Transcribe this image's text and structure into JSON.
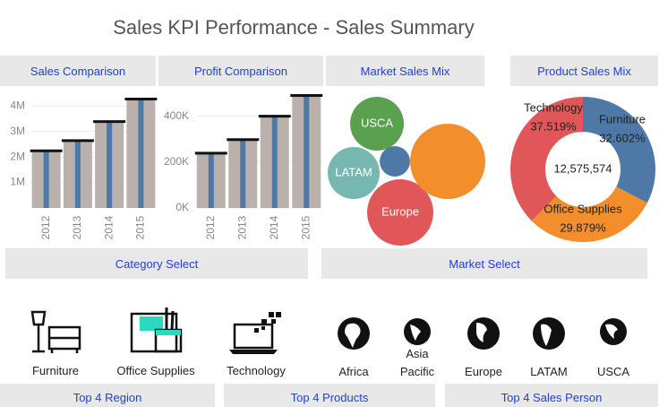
{
  "title": "Sales KPI Performance - Sales Summary",
  "chart_data": [
    {
      "type": "bar",
      "title": "Sales Comparison",
      "categories": [
        "2012",
        "2013",
        "2014",
        "2015"
      ],
      "values": [
        2240000,
        2640000,
        3390000,
        4270000
      ],
      "color": "#bab0ac",
      "inner_color": "#4e79a7",
      "target_color": "#111111",
      "ylim": [
        0,
        4500000
      ],
      "yticks": [
        {
          "value": 1000000,
          "label": "1M"
        },
        {
          "value": 2000000,
          "label": "2M"
        },
        {
          "value": 3000000,
          "label": "3M"
        },
        {
          "value": 4000000,
          "label": "4M"
        }
      ],
      "grid": true
    },
    {
      "type": "bar",
      "title": "Profit Comparison",
      "categories": [
        "2012",
        "2013",
        "2014",
        "2015"
      ],
      "values": [
        239000,
        298000,
        400000,
        490000
      ],
      "color": "#bab0ac",
      "inner_color": "#4e79a7",
      "target_color": "#111111",
      "ylim": [
        0,
        500000
      ],
      "yticks": [
        {
          "value": 0,
          "label": "0K"
        },
        {
          "value": 200000,
          "label": "200K"
        },
        {
          "value": 400000,
          "label": "400K"
        }
      ],
      "grid": true
    },
    {
      "type": "bubble",
      "title": "Market Sales Mix",
      "categories": [
        "USCA",
        "LATAM",
        "Europe",
        null,
        null
      ],
      "values": [
        2190000,
        2050000,
        3330000,
        4300000,
        700000
      ],
      "colors": [
        "#59a14f",
        "#76b7b2",
        "#e15759",
        "#f28e2b",
        "#4e79a7"
      ]
    },
    {
      "type": "pie",
      "title": "Product Sales Mix",
      "categories": [
        "Furniture",
        "Office Supplies",
        "Technology"
      ],
      "values": [
        32.602,
        29.879,
        37.519
      ],
      "value_labels": [
        "32.602%",
        "29.879%",
        "37.519%"
      ],
      "colors": [
        "#4e79a7",
        "#f28e2b",
        "#e15759"
      ],
      "center_label": "12,575,574"
    }
  ],
  "category_select": {
    "title": "Category Select",
    "items": [
      "Furniture",
      "Office Supplies",
      "Technology"
    ]
  },
  "market_select": {
    "title": "Market Select",
    "items": [
      "Africa",
      "Asia Pacific",
      "Europe",
      "LATAM",
      "USCA"
    ]
  },
  "bottom_tabs": [
    "Top 4 Region",
    "Top 4 Products",
    "Top 4 Sales Person"
  ]
}
